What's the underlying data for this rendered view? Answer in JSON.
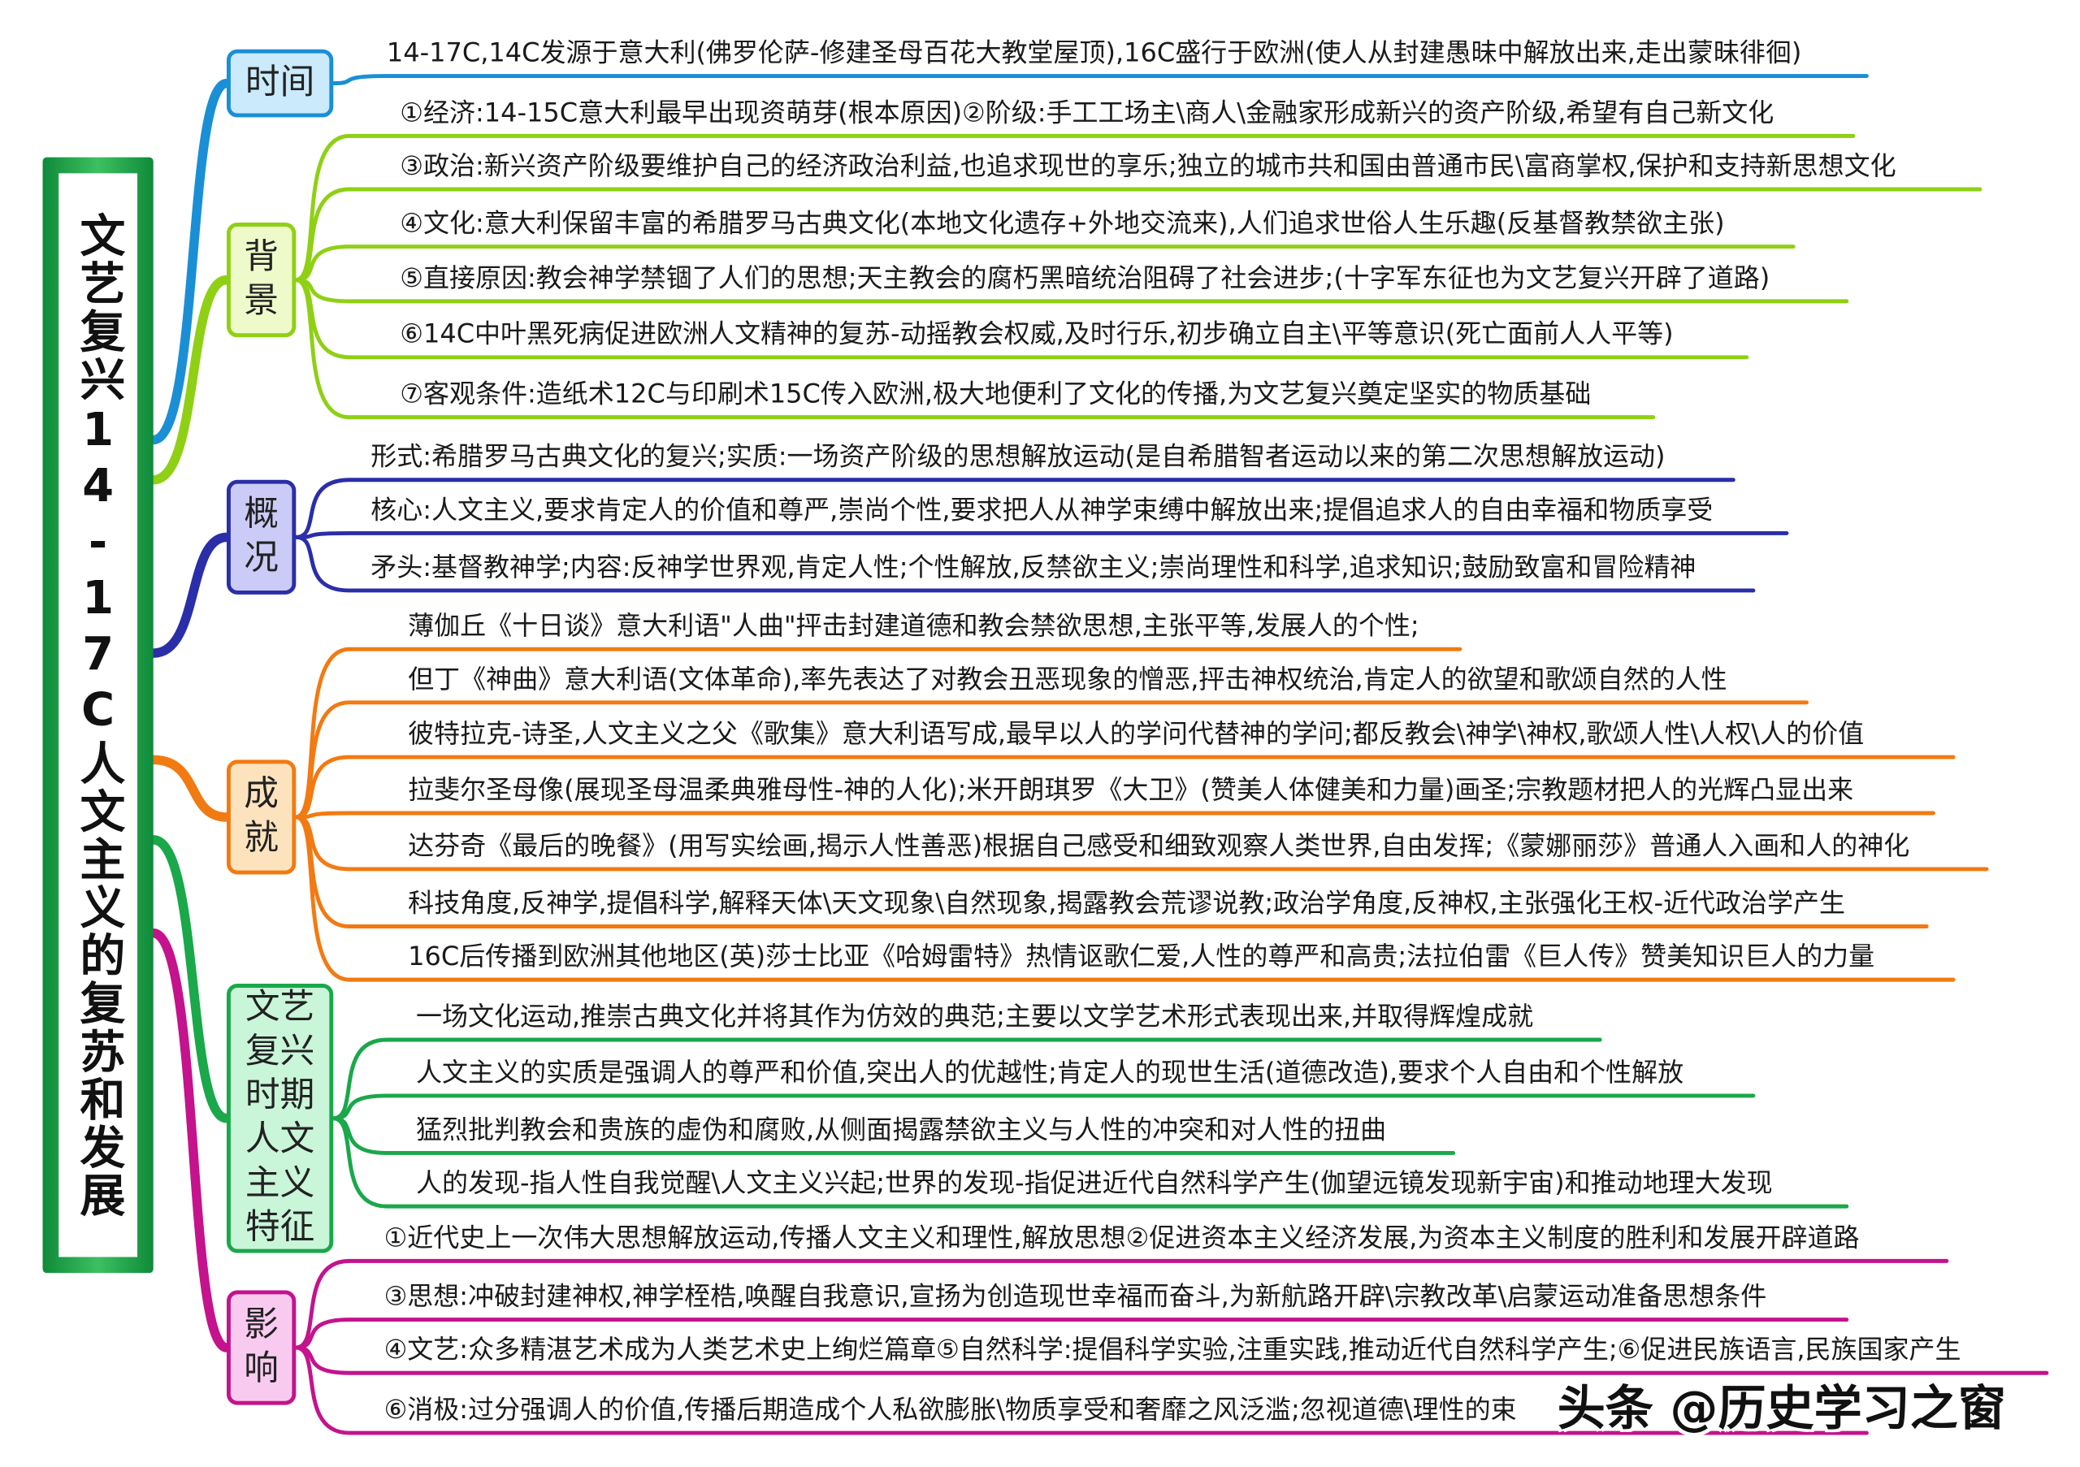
{
  "title": "文艺复兴14-17C人文主义的复苏和发展",
  "branches": [
    {
      "label": "时间",
      "color": "#1a8fd6",
      "bg": "#cbeafb",
      "items": [
        "14-17C,14C发源于意大利(佛罗伦萨-修建圣母百花大教堂屋顶),16C盛行于欧洲(使人从封建愚昧中解放出来,走出蒙昧徘徊)"
      ]
    },
    {
      "label": "背景",
      "color": "#8fd014",
      "bg": "#eefac9",
      "items": [
        "①经济:14-15C意大利最早出现资萌芽(根本原因)②阶级:手工工场主\\商人\\金融家形成新兴的资产阶级,希望有自己新文化",
        "③政治:新兴资产阶级要维护自己的经济政治利益,也追求现世的享乐;独立的城市共和国由普通市民\\富商掌权,保护和支持新思想文化",
        "④文化:意大利保留丰富的希腊罗马古典文化(本地文化遗存+外地交流来),人们追求世俗人生乐趣(反基督教禁欲主张)",
        "⑤直接原因:教会神学禁锢了人们的思想;天主教会的腐朽黑暗统治阻碍了社会进步;(十字军东征也为文艺复兴开辟了道路)",
        "⑥14C中叶黑死病促进欧洲人文精神的复苏-动摇教会权威,及时行乐,初步确立自主\\平等意识(死亡面前人人平等)",
        "⑦客观条件:造纸术12C与印刷术15C传入欧洲,极大地便利了文化的传播,为文艺复兴奠定坚实的物质基础"
      ]
    },
    {
      "label": "概况",
      "color": "#2a2ea8",
      "bg": "#cbcbf7",
      "items": [
        "形式:希腊罗马古典文化的复兴;实质:一场资产阶级的思想解放运动(是自希腊智者运动以来的第二次思想解放运动)",
        "核心:人文主义,要求肯定人的价值和尊严,崇尚个性,要求把人从神学束缚中解放出来;提倡追求人的自由幸福和物质享受",
        "矛头:基督教神学;内容:反神学世界观,肯定人性;个性解放,反禁欲主义;崇尚理性和科学,追求知识;鼓励致富和冒险精神"
      ]
    },
    {
      "label": "成就",
      "color": "#f27a12",
      "bg": "#fde3bd",
      "items": [
        "薄伽丘《十日谈》意大利语\"人曲\"抨击封建道德和教会禁欲思想,主张平等,发展人的个性;",
        "但丁《神曲》意大利语(文体革命),率先表达了对教会丑恶现象的憎恶,抨击神权统治,肯定人的欲望和歌颂自然的人性",
        "彼特拉克-诗圣,人文主义之父《歌集》意大利语写成,最早以人的学问代替神的学问;都反教会\\神学\\神权,歌颂人性\\人权\\人的价值",
        "拉斐尔圣母像(展现圣母温柔典雅母性-神的人化);米开朗琪罗《大卫》(赞美人体健美和力量)画圣;宗教题材把人的光辉凸显出来",
        "达芬奇《最后的晚餐》(用写实绘画,揭示人性善恶)根据自己感受和细致观察人类世界,自由发挥;《蒙娜丽莎》普通人入画和人的神化",
        "科技角度,反神学,提倡科学,解释天体\\天文现象\\自然现象,揭露教会荒谬说教;政治学角度,反神权,主张强化王权-近代政治学产生",
        "16C后传播到欧洲其他地区(英)莎士比亚《哈姆雷特》热情讴歌仁爱,人性的尊严和高贵;法拉伯雷《巨人传》赞美知识巨人的力量"
      ]
    },
    {
      "label": "文艺复兴时期人文主义特征",
      "color": "#1aa84a",
      "bg": "#c9f5d9",
      "items": [
        "一场文化运动,推崇古典文化并将其作为仿效的典范;主要以文学艺术形式表现出来,并取得辉煌成就",
        "人文主义的实质是强调人的尊严和价值,突出人的优越性;肯定人的现世生活(道德改造),要求个人自由和个性解放",
        "猛烈批判教会和贵族的虚伪和腐败,从侧面揭露禁欲主义与人性的冲突和对人性的扭曲",
        "人的发现-指人性自我觉醒\\人文主义兴起;世界的发现-指促进近代自然科学产生(伽望远镜发现新宇宙)和推动地理大发现"
      ]
    },
    {
      "label": "影响",
      "color": "#c4138c",
      "bg": "#f9caf0",
      "items": [
        "①近代史上一次伟大思想解放运动,传播人文主义和理性,解放思想②促进资本主义经济发展,为资本主义制度的胜利和发展开辟道路",
        "③思想:冲破封建神权,神学桎梏,唤醒自我意识,宣扬为创造现世幸福而奋斗,为新航路开辟\\宗教改革\\启蒙运动准备思想条件",
        "④文艺:众多精湛艺术成为人类艺术史上绚烂篇章⑤自然科学:提倡科学实验,注重实践,推动近代自然科学产生;⑥促进民族语言,民族国家产生",
        "⑥消极:过分强调人的价值,传播后期造成个人私欲膨胀\\物质享受和奢靡之风泛滥;忽视道德\\理性的束"
      ]
    }
  ],
  "watermark": "头条 @历史学习之窗"
}
